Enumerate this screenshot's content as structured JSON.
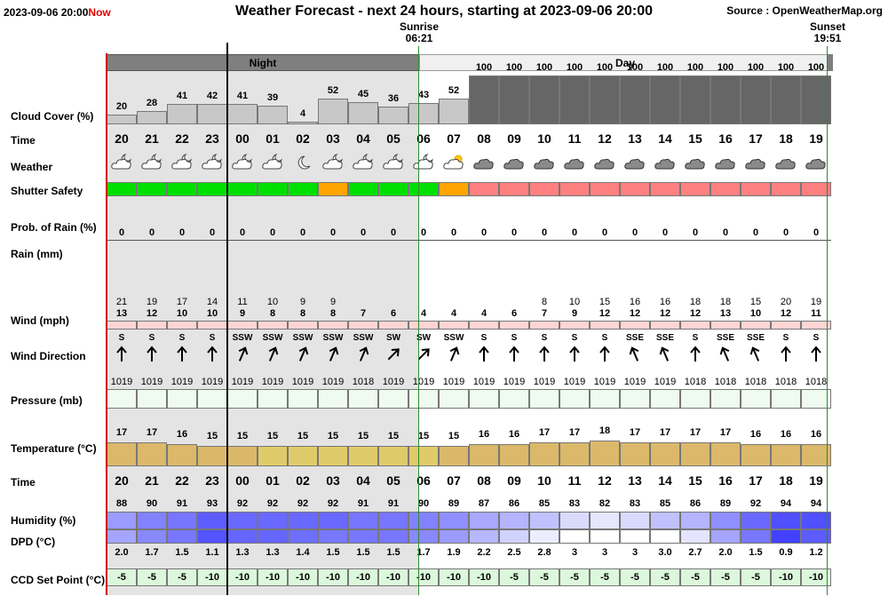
{
  "header": {
    "datetime": "2023-09-06 20:00",
    "now_label": "Now",
    "title": "Weather Forecast - next 24 hours, starting at 2023-09-06 20:00",
    "source": "Source : OpenWeatherMap.org"
  },
  "sun": {
    "sunrise_label": "Sunrise",
    "sunrise_time": "06:21",
    "sunset_label": "Sunset",
    "sunset_time": "19:51"
  },
  "periods": {
    "night": "Night",
    "day": "Day"
  },
  "row_labels": {
    "cloud_cover": "Cloud Cover (%)",
    "time": "Time",
    "weather": "Weather",
    "shutter_safety": "Shutter Safety",
    "rain_prob": "Prob. of Rain (%)",
    "rain": "Rain (mm)",
    "wind": "Wind (mph)",
    "wind_dir": "Wind Direction",
    "pressure": "Pressure (mb)",
    "temperature": "Temperature (°C)",
    "time2": "Time",
    "humidity": "Humidity (%)",
    "dpd": "DPD (°C)",
    "ccd": "CCD Set Point (°C)"
  },
  "colors": {
    "night_bg": "#e4e4e4",
    "period_night": "#7f7f7f",
    "period_day": "#f0f0f0",
    "now_line": "#d00000",
    "sun_line": "#2e8b2e",
    "cloud_light": "#c8c8c8",
    "cloud_dark": "#666666",
    "safety_safe": "#00e000",
    "safety_warn": "#ffa500",
    "safety_unsafe": "#ff8080",
    "wind_bar": "#ffd4d4",
    "pressure_bar": "#eefbee",
    "ccd_bar": "#dcf8dc"
  },
  "hours": [
    "20",
    "21",
    "22",
    "23",
    "00",
    "01",
    "02",
    "03",
    "04",
    "05",
    "06",
    "07",
    "08",
    "09",
    "10",
    "11",
    "12",
    "13",
    "14",
    "15",
    "16",
    "17",
    "18",
    "19"
  ],
  "cloud_cover": [
    20,
    28,
    41,
    42,
    41,
    39,
    4,
    52,
    45,
    36,
    43,
    52,
    100,
    100,
    100,
    100,
    100,
    100,
    100,
    100,
    100,
    100,
    100,
    100
  ],
  "weather_icons": [
    "night-partly-cloudy-icon",
    "night-partly-cloudy-icon",
    "night-partly-cloudy-icon",
    "night-partly-cloudy-icon",
    "night-partly-cloudy-icon",
    "night-partly-cloudy-icon",
    "moon-icon",
    "night-partly-cloudy-icon",
    "night-partly-cloudy-icon",
    "night-partly-cloudy-icon",
    "night-partly-cloudy-icon",
    "sun-cloud-icon",
    "cloud-icon",
    "cloud-icon",
    "cloud-icon",
    "cloud-icon",
    "cloud-icon",
    "cloud-icon",
    "cloud-icon",
    "cloud-icon",
    "cloud-icon",
    "cloud-icon",
    "cloud-icon",
    "cloud-icon"
  ],
  "shutter_safety": [
    "safe",
    "safe",
    "safe",
    "safe",
    "safe",
    "safe",
    "safe",
    "warn",
    "safe",
    "safe",
    "safe",
    "warn",
    "unsafe",
    "unsafe",
    "unsafe",
    "unsafe",
    "unsafe",
    "unsafe",
    "unsafe",
    "unsafe",
    "unsafe",
    "unsafe",
    "unsafe",
    "unsafe"
  ],
  "rain_prob": [
    0,
    0,
    0,
    0,
    0,
    0,
    0,
    0,
    0,
    0,
    0,
    0,
    0,
    0,
    0,
    0,
    0,
    0,
    0,
    0,
    0,
    0,
    0,
    0
  ],
  "wind_gust": [
    "21",
    "19",
    "17",
    "14",
    "11",
    "10",
    "9",
    "9",
    "",
    "",
    "",
    "",
    "",
    "",
    "8",
    "10",
    "15",
    "16",
    "16",
    "18",
    "18",
    "15",
    "20",
    "19"
  ],
  "wind_speed": [
    13,
    12,
    10,
    10,
    9,
    8,
    8,
    8,
    7,
    6,
    4,
    4,
    4,
    6,
    7,
    9,
    12,
    12,
    12,
    12,
    13,
    10,
    12,
    11
  ],
  "wind_dir": [
    "S",
    "S",
    "S",
    "S",
    "SSW",
    "SSW",
    "SSW",
    "SSW",
    "SSW",
    "SW",
    "SW",
    "SSW",
    "S",
    "S",
    "S",
    "S",
    "S",
    "SSE",
    "SSE",
    "S",
    "SSE",
    "SSE",
    "S",
    "S"
  ],
  "wind_dir_deg": [
    0,
    0,
    0,
    0,
    23,
    23,
    23,
    23,
    23,
    45,
    45,
    23,
    0,
    0,
    0,
    0,
    0,
    -23,
    -23,
    0,
    -23,
    -23,
    0,
    0
  ],
  "pressure": [
    1019,
    1019,
    1019,
    1019,
    1019,
    1019,
    1019,
    1019,
    1018,
    1019,
    1019,
    1019,
    1019,
    1019,
    1019,
    1019,
    1019,
    1019,
    1019,
    1018,
    1018,
    1018,
    1018,
    1018
  ],
  "temperature": [
    17,
    17,
    16,
    15,
    15,
    15,
    15,
    15,
    15,
    15,
    15,
    15,
    16,
    16,
    17,
    17,
    18,
    17,
    17,
    17,
    17,
    16,
    16,
    16
  ],
  "temperature_colors": [
    "#dbb86a",
    "#dbb86a",
    "#dbb86a",
    "#dbb86a",
    "#dbb86a",
    "#e0cb6a",
    "#e0cb6a",
    "#e0cb6a",
    "#e0cb6a",
    "#e0cb6a",
    "#e0cb6a",
    "#dbb86a",
    "#dbb86a",
    "#dbb86a",
    "#dbb86a",
    "#dbb86a",
    "#dbb86a",
    "#dbb86a",
    "#dbb86a",
    "#dbb86a",
    "#dbb86a",
    "#dbb86a",
    "#dbb86a",
    "#dbb86a"
  ],
  "humidity": [
    88,
    90,
    91,
    93,
    92,
    92,
    92,
    92,
    91,
    91,
    90,
    89,
    87,
    86,
    85,
    83,
    82,
    83,
    85,
    86,
    89,
    92,
    94,
    94
  ],
  "dpd": [
    "2.0",
    "1.7",
    "1.5",
    "1.1",
    "1.3",
    "1.3",
    "1.4",
    "1.5",
    "1.5",
    "1.5",
    "1.7",
    "1.9",
    "2.2",
    "2.5",
    "2.8",
    "3",
    "3",
    "3",
    "3.0",
    "2.7",
    "2.0",
    "1.5",
    "0.9",
    "1.2"
  ],
  "ccd": [
    -5,
    -5,
    -5,
    -10,
    -10,
    -10,
    -10,
    -10,
    -10,
    -10,
    -10,
    -10,
    -10,
    -5,
    -5,
    -5,
    -5,
    -5,
    -5,
    -5,
    -5,
    -5,
    -10,
    -10
  ]
}
